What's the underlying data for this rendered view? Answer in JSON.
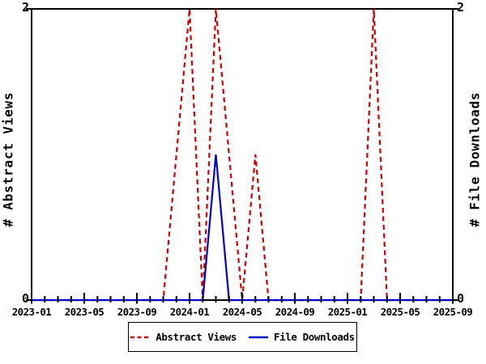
{
  "chart_data": {
    "type": "line",
    "title": "",
    "months": [
      "2023-01",
      "2023-02",
      "2023-03",
      "2023-04",
      "2023-05",
      "2023-06",
      "2023-07",
      "2023-08",
      "2023-09",
      "2023-10",
      "2023-11",
      "2023-12",
      "2024-01",
      "2024-02",
      "2024-03",
      "2024-04",
      "2024-05",
      "2024-06",
      "2024-07",
      "2024-08",
      "2024-09",
      "2024-10",
      "2024-11",
      "2024-12",
      "2025-01",
      "2025-02",
      "2025-03",
      "2025-04",
      "2025-05",
      "2025-06",
      "2025-07",
      "2025-08",
      "2025-09"
    ],
    "x_tick_labels": [
      "2023-01",
      "2023-05",
      "2023-09",
      "2024-01",
      "2024-05",
      "2024-09",
      "2025-01",
      "2025-05",
      "2025-09"
    ],
    "x_major_tick_every_months": 4,
    "x_minor_tick_every_months": 1,
    "ylim": [
      0,
      2
    ],
    "y_axis_labels": {
      "top": "2",
      "bottom": "0"
    },
    "left_ylabel": "# Abstract Views",
    "right_ylabel": "# File Downloads",
    "grid": false,
    "legend_position": "bottom-center",
    "series": [
      {
        "name": "Abstract Views",
        "color": "#cc0000",
        "style": "dashed",
        "values": [
          0,
          0,
          0,
          0,
          0,
          0,
          0,
          0,
          0,
          0,
          0,
          1,
          2,
          0,
          2,
          1,
          0,
          1,
          0,
          0,
          0,
          0,
          0,
          0,
          0,
          0,
          2,
          0,
          0,
          0,
          0,
          0,
          0
        ]
      },
      {
        "name": "File Downloads",
        "color": "#0000cc",
        "style": "solid",
        "values": [
          0,
          0,
          0,
          0,
          0,
          0,
          0,
          0,
          0,
          0,
          0,
          0,
          0,
          0,
          1,
          0,
          0,
          0,
          0,
          0,
          0,
          0,
          0,
          0,
          0,
          0,
          0,
          0,
          0,
          0,
          0,
          0,
          0
        ]
      }
    ],
    "colors": {
      "axis": "#000000",
      "background": "#ffffff"
    }
  }
}
